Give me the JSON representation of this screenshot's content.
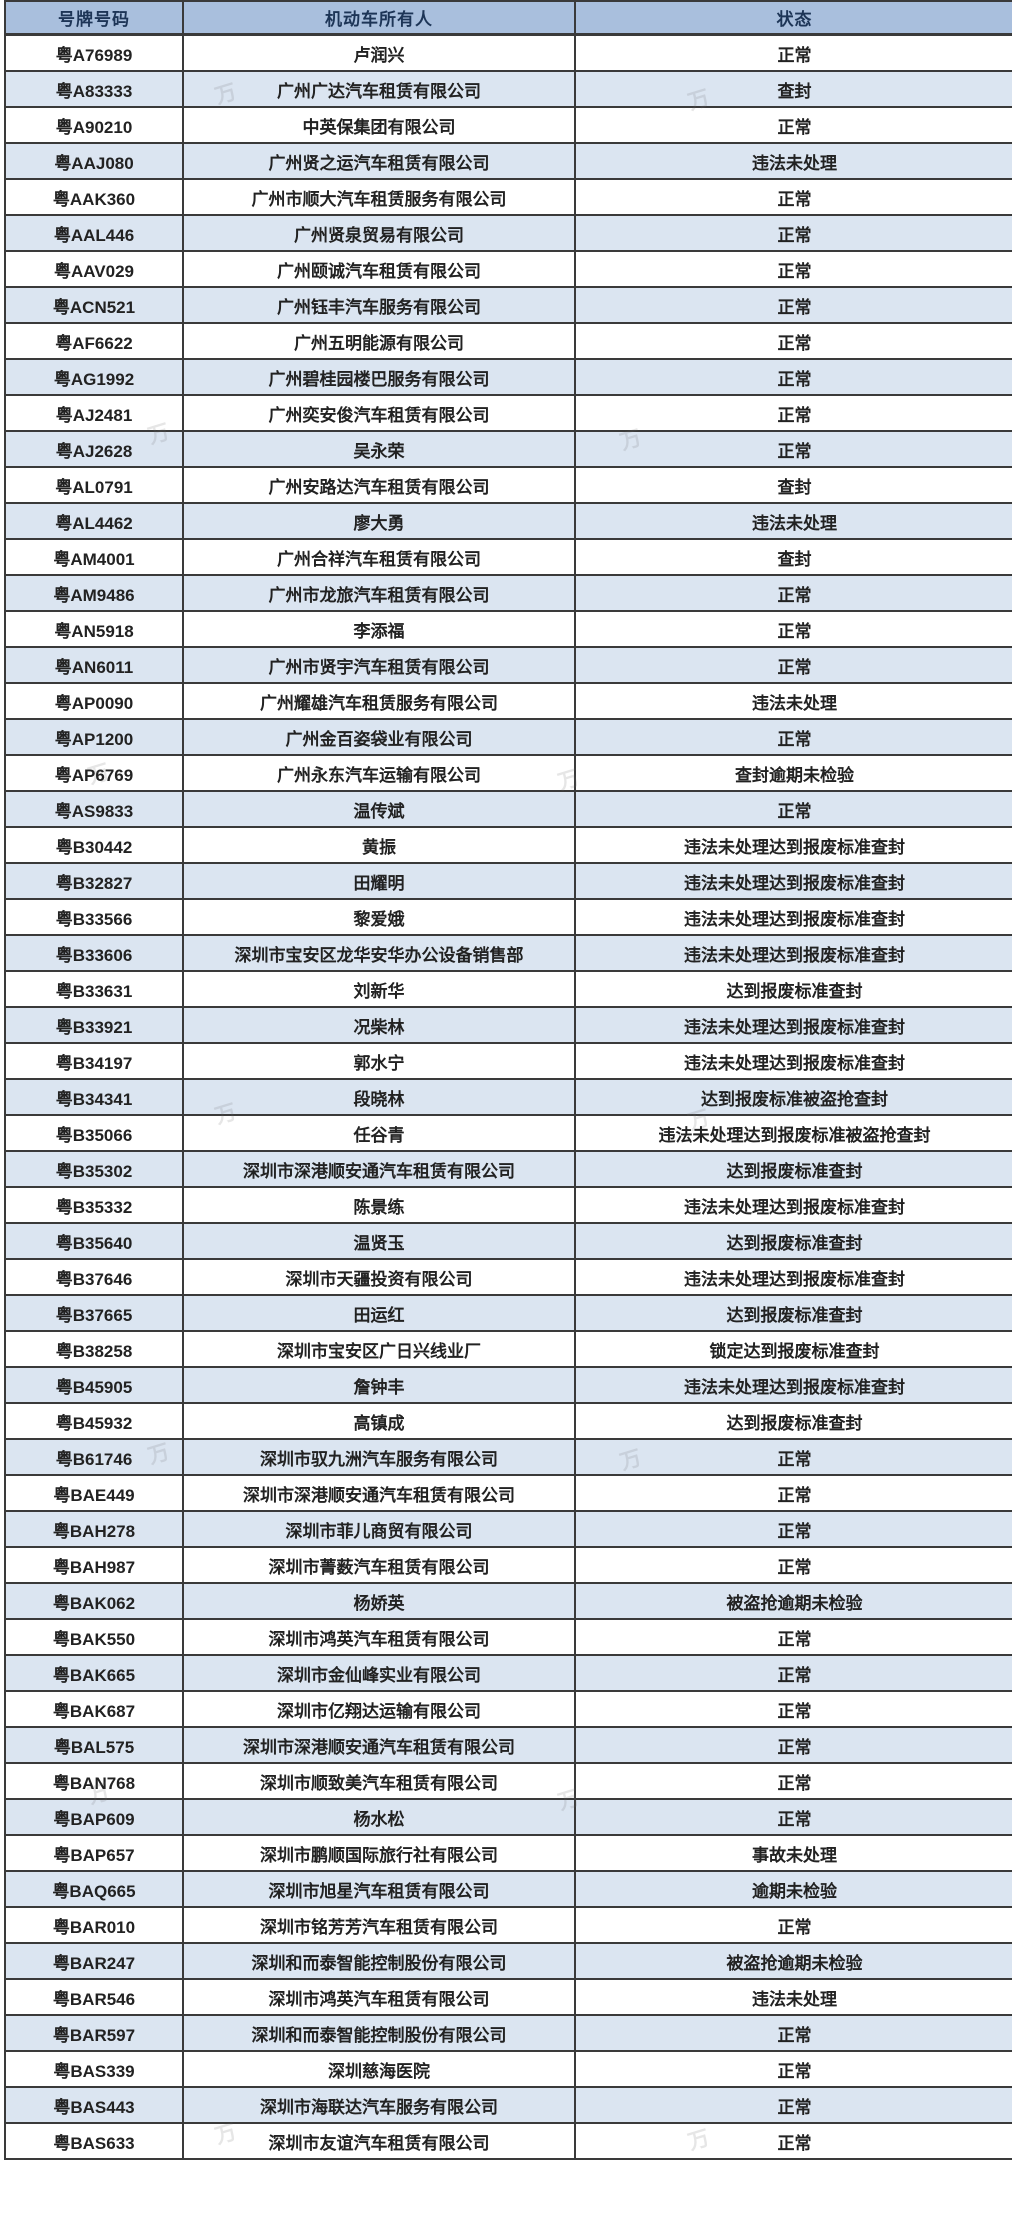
{
  "colors": {
    "header_bg": "#a9bfdd",
    "header_text": "#1d3557",
    "row_alt_bg": "#dbe5f1",
    "border": "#3a3a3a",
    "body_text": "#222222"
  },
  "watermark_glyph": "万",
  "table": {
    "columns": [
      {
        "key": "plate",
        "label": "号牌号码"
      },
      {
        "key": "owner",
        "label": "机动车所有人"
      },
      {
        "key": "status",
        "label": "状态"
      }
    ],
    "rows": [
      {
        "plate": "粤A76989",
        "owner": "卢润兴",
        "status": "正常"
      },
      {
        "plate": "粤A83333",
        "owner": "广州广达汽车租赁有限公司",
        "status": "查封"
      },
      {
        "plate": "粤A90210",
        "owner": "中英保集团有限公司",
        "status": "正常"
      },
      {
        "plate": "粤AAJ080",
        "owner": "广州贤之运汽车租赁有限公司",
        "status": "违法未处理"
      },
      {
        "plate": "粤AAK360",
        "owner": "广州市顺大汽车租赁服务有限公司",
        "status": "正常"
      },
      {
        "plate": "粤AAL446",
        "owner": "广州贤泉贸易有限公司",
        "status": "正常"
      },
      {
        "plate": "粤AAV029",
        "owner": "广州颐诚汽车租赁有限公司",
        "status": "正常"
      },
      {
        "plate": "粤ACN521",
        "owner": "广州钰丰汽车服务有限公司",
        "status": "正常"
      },
      {
        "plate": "粤AF6622",
        "owner": "广州五明能源有限公司",
        "status": "正常"
      },
      {
        "plate": "粤AG1992",
        "owner": "广州碧桂园楼巴服务有限公司",
        "status": "正常"
      },
      {
        "plate": "粤AJ2481",
        "owner": "广州奕安俊汽车租赁有限公司",
        "status": "正常"
      },
      {
        "plate": "粤AJ2628",
        "owner": "吴永荣",
        "status": "正常"
      },
      {
        "plate": "粤AL0791",
        "owner": "广州安路达汽车租赁有限公司",
        "status": "查封"
      },
      {
        "plate": "粤AL4462",
        "owner": "廖大勇",
        "status": "违法未处理"
      },
      {
        "plate": "粤AM4001",
        "owner": "广州合祥汽车租赁有限公司",
        "status": "查封"
      },
      {
        "plate": "粤AM9486",
        "owner": "广州市龙旅汽车租赁有限公司",
        "status": "正常"
      },
      {
        "plate": "粤AN5918",
        "owner": "李添福",
        "status": "正常"
      },
      {
        "plate": "粤AN6011",
        "owner": "广州市贤宇汽车租赁有限公司",
        "status": "正常"
      },
      {
        "plate": "粤AP0090",
        "owner": "广州耀雄汽车租赁服务有限公司",
        "status": "违法未处理"
      },
      {
        "plate": "粤AP1200",
        "owner": "广州金百姿袋业有限公司",
        "status": "正常"
      },
      {
        "plate": "粤AP6769",
        "owner": "广州永东汽车运输有限公司",
        "status": "查封逾期未检验"
      },
      {
        "plate": "粤AS9833",
        "owner": "温传斌",
        "status": "正常"
      },
      {
        "plate": "粤B30442",
        "owner": "黄振",
        "status": "违法未处理达到报废标准查封"
      },
      {
        "plate": "粤B32827",
        "owner": "田耀明",
        "status": "违法未处理达到报废标准查封"
      },
      {
        "plate": "粤B33566",
        "owner": "黎爱娥",
        "status": "违法未处理达到报废标准查封"
      },
      {
        "plate": "粤B33606",
        "owner": "深圳市宝安区龙华安华办公设备销售部",
        "status": "违法未处理达到报废标准查封"
      },
      {
        "plate": "粤B33631",
        "owner": "刘新华",
        "status": "达到报废标准查封"
      },
      {
        "plate": "粤B33921",
        "owner": "况柴林",
        "status": "违法未处理达到报废标准查封"
      },
      {
        "plate": "粤B34197",
        "owner": "郭水宁",
        "status": "违法未处理达到报废标准查封"
      },
      {
        "plate": "粤B34341",
        "owner": "段晓林",
        "status": "达到报废标准被盗抢查封"
      },
      {
        "plate": "粤B35066",
        "owner": "任谷青",
        "status": "违法未处理达到报废标准被盗抢查封"
      },
      {
        "plate": "粤B35302",
        "owner": "深圳市深港顺安通汽车租赁有限公司",
        "status": "达到报废标准查封"
      },
      {
        "plate": "粤B35332",
        "owner": "陈景练",
        "status": "违法未处理达到报废标准查封"
      },
      {
        "plate": "粤B35640",
        "owner": "温贤玉",
        "status": "达到报废标准查封"
      },
      {
        "plate": "粤B37646",
        "owner": "深圳市天疆投资有限公司",
        "status": "违法未处理达到报废标准查封"
      },
      {
        "plate": "粤B37665",
        "owner": "田运红",
        "status": "达到报废标准查封"
      },
      {
        "plate": "粤B38258",
        "owner": "深圳市宝安区广日兴线业厂",
        "status": "锁定达到报废标准查封"
      },
      {
        "plate": "粤B45905",
        "owner": "詹钟丰",
        "status": "违法未处理达到报废标准查封"
      },
      {
        "plate": "粤B45932",
        "owner": "高镇成",
        "status": "达到报废标准查封"
      },
      {
        "plate": "粤B61746",
        "owner": "深圳市驭九洲汽车服务有限公司",
        "status": "正常"
      },
      {
        "plate": "粤BAE449",
        "owner": "深圳市深港顺安通汽车租赁有限公司",
        "status": "正常"
      },
      {
        "plate": "粤BAH278",
        "owner": "深圳市菲儿商贸有限公司",
        "status": "正常"
      },
      {
        "plate": "粤BAH987",
        "owner": "深圳市菁薮汽车租赁有限公司",
        "status": "正常"
      },
      {
        "plate": "粤BAK062",
        "owner": "杨娇英",
        "status": "被盗抢逾期未检验"
      },
      {
        "plate": "粤BAK550",
        "owner": "深圳市鸿英汽车租赁有限公司",
        "status": "正常"
      },
      {
        "plate": "粤BAK665",
        "owner": "深圳市金仙峰实业有限公司",
        "status": "正常"
      },
      {
        "plate": "粤BAK687",
        "owner": "深圳市亿翔达运输有限公司",
        "status": "正常"
      },
      {
        "plate": "粤BAL575",
        "owner": "深圳市深港顺安通汽车租赁有限公司",
        "status": "正常"
      },
      {
        "plate": "粤BAN768",
        "owner": "深圳市顺致美汽车租赁有限公司",
        "status": "正常"
      },
      {
        "plate": "粤BAP609",
        "owner": "杨水松",
        "status": "正常"
      },
      {
        "plate": "粤BAP657",
        "owner": "深圳市鹏顺国际旅行社有限公司",
        "status": "事故未处理"
      },
      {
        "plate": "粤BAQ665",
        "owner": "深圳市旭星汽车租赁有限公司",
        "status": "逾期未检验"
      },
      {
        "plate": "粤BAR010",
        "owner": "深圳市铭芳芳汽车租赁有限公司",
        "status": "正常"
      },
      {
        "plate": "粤BAR247",
        "owner": "深圳和而泰智能控制股份有限公司",
        "status": "被盗抢逾期未检验"
      },
      {
        "plate": "粤BAR546",
        "owner": "深圳市鸿英汽车租赁有限公司",
        "status": "违法未处理"
      },
      {
        "plate": "粤BAR597",
        "owner": "深圳和而泰智能控制股份有限公司",
        "status": "正常"
      },
      {
        "plate": "粤BAS339",
        "owner": "深圳慈海医院",
        "status": "正常"
      },
      {
        "plate": "粤BAS443",
        "owner": "深圳市海联达汽车服务有限公司",
        "status": "正常"
      },
      {
        "plate": "粤BAS633",
        "owner": "深圳市友谊汽车租赁有限公司",
        "status": "正常"
      }
    ]
  }
}
